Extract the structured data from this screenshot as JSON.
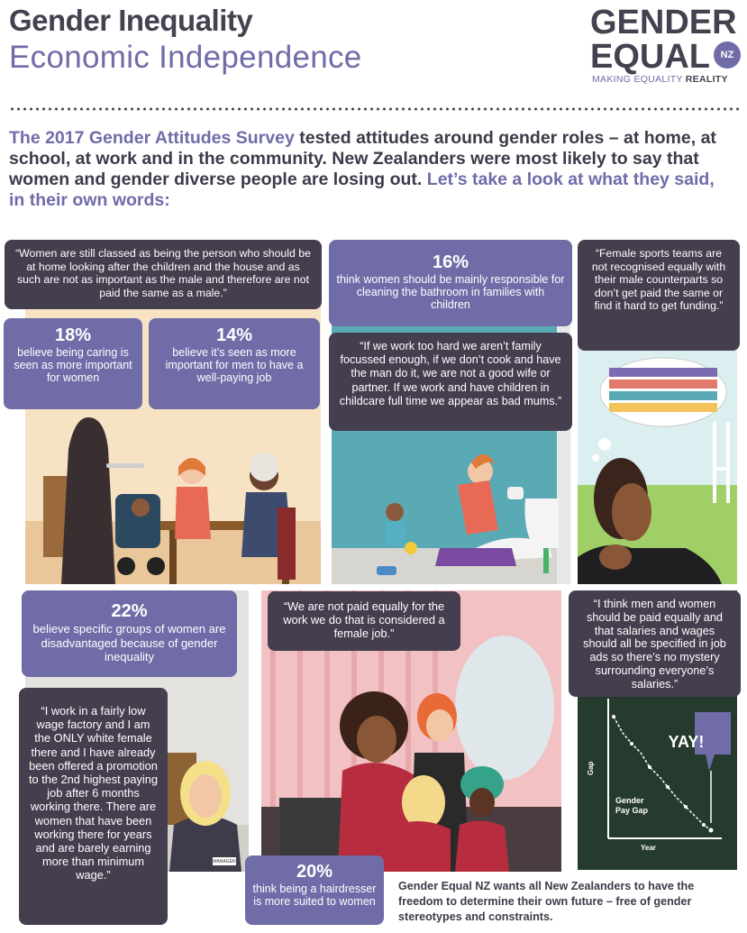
{
  "header": {
    "title": "Gender Inequality",
    "subtitle": "Economic Independence"
  },
  "logo": {
    "line1": "GENDER",
    "line2": "EQUAL",
    "badge": "NZ",
    "tagline_plain": "MAKING EQUALITY ",
    "tagline_bold": "REALITY"
  },
  "intro": {
    "highlight1": "The 2017 Gender Attitudes Survey",
    "text1": " tested attitudes around gender roles – at home, at school, at work and in the community. New Zealanders were most likely to say that women and gender diverse people are losing out.",
    "highlight2": "Let’s take a look at what they said, in their own words:"
  },
  "quotes": {
    "q1": "“Women are still classed as being the person who should be at home looking after the children and the house and as such are not as important as the male and therefore are not paid the same as a male.”",
    "q2": "“If we work too hard we aren’t family focussed enough, if we don’t cook and have the man do it, we are not a good wife or partner. If we work and have children in childcare full time we appear as bad mums.”",
    "q3": "“Female sports teams are not recognised equally with their male counterparts so don’t get paid the same or find it hard to get funding.”",
    "q4": "“We are not paid equally for the work we do that is considered a female job.”",
    "q5": "“I think men and women should be paid equally and that salaries and wages should all be specified in job ads so there’s no mystery surrounding everyone’s salaries.”",
    "q6": "“I work in a fairly low wage factory and I am the ONLY white female there and I have already been offered a promotion to the 2nd highest paying job after 6 months working there. There are women that have been working there for years and are barely earning more than minimum wage.”"
  },
  "stats": {
    "s1": {
      "pct": "18%",
      "text": "believe being caring is seen as more important for women"
    },
    "s2": {
      "pct": "14%",
      "text": "believe it’s seen as more important for men to have a well-paying job"
    },
    "s3": {
      "pct": "16%",
      "text": "think women should be mainly responsible for cleaning the bathroom in families with children"
    },
    "s4": {
      "pct": "22%",
      "text": "believe specific groups of women are disadvantaged because of gender inequality"
    },
    "s5": {
      "pct": "20%",
      "text": "think being a hairdresser is more suited to women"
    }
  },
  "chalkboard": {
    "yay": "YAY!",
    "ylabel": "Gap",
    "xlabel": "Year",
    "line_label": "Gender Pay Gap"
  },
  "badge_text": "MANAGER",
  "footer": "Gender Equal NZ wants all New Zealanders to have the freedom to determine their own future – free of gender stereotypes and constraints.",
  "colors": {
    "dark": "#453e4f",
    "purple": "#6f6ca8",
    "chalk": "#253b2e"
  }
}
